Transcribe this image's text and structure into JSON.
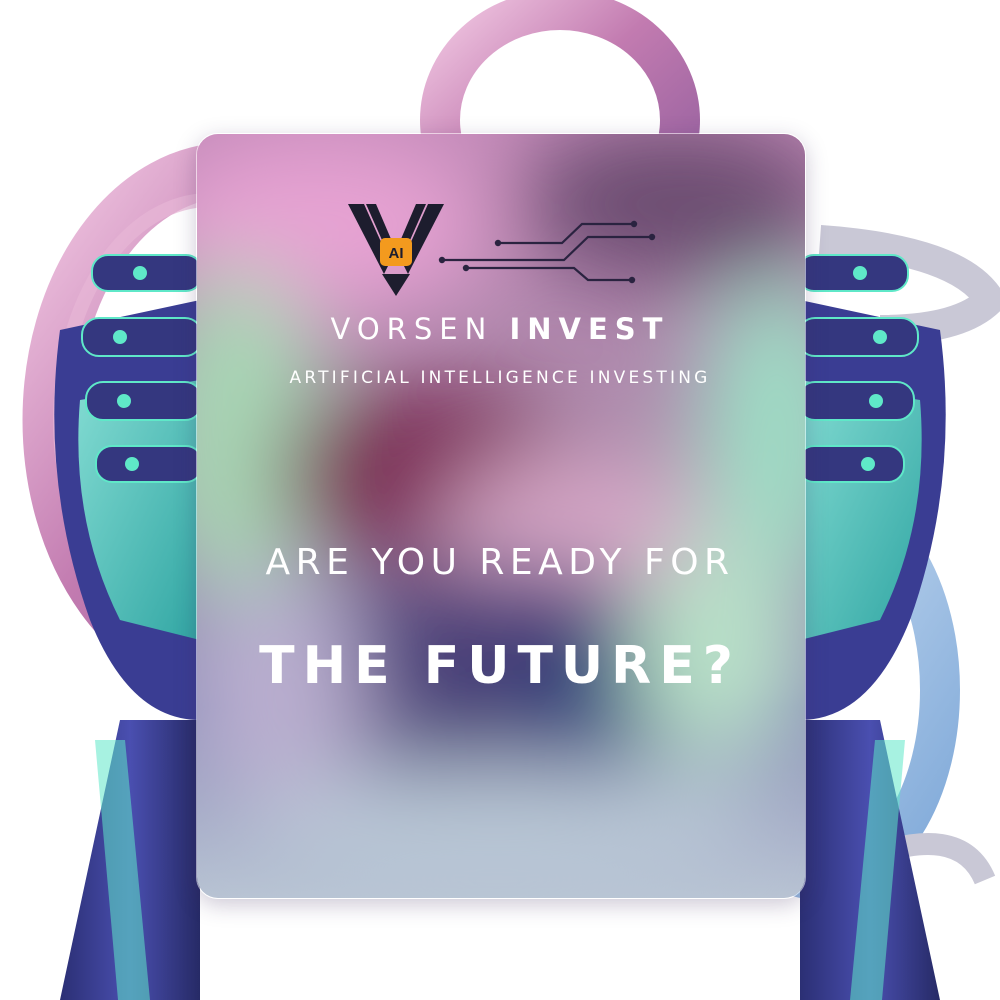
{
  "colors": {
    "accent_pink": "#c07aa8",
    "robot_blue": "#3b3f8c",
    "robot_glow": "#5fe8c8",
    "logo_badge": "#f39a1e",
    "text": "#ffffff"
  },
  "logo": {
    "badge_text": "AI",
    "icons": [
      "v-shield-logo-icon",
      "circuit-lines-icon"
    ]
  },
  "brand": {
    "name_light": "VORSEN",
    "name_bold": "INVEST",
    "tagline": "ARTIFICIAL INTELLIGENCE INVESTING"
  },
  "headline": {
    "line1": "ARE YOU READY FOR",
    "line2": "THE FUTURE?"
  }
}
